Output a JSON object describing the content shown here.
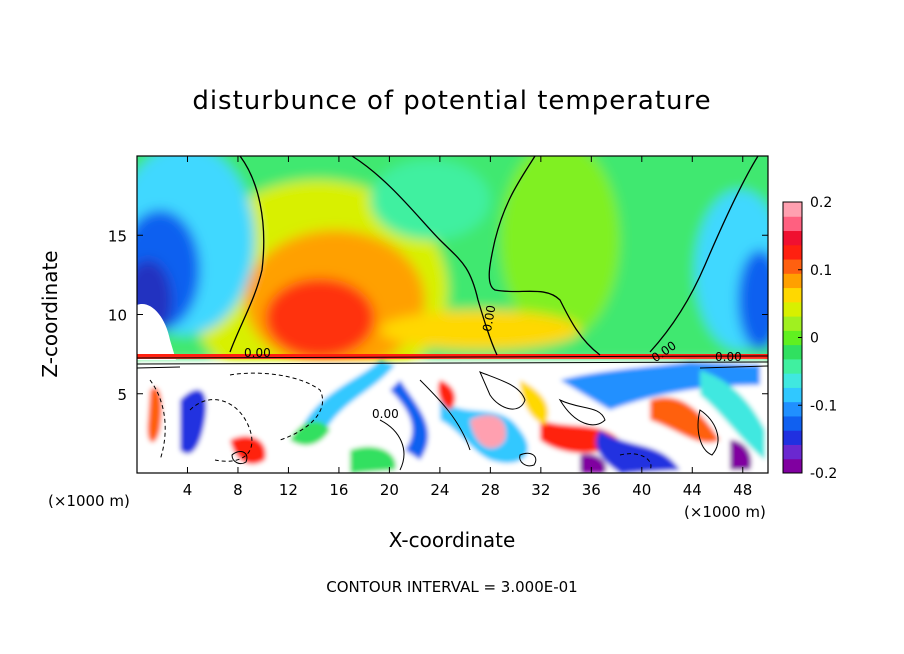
{
  "chart_data": {
    "type": "heatmap",
    "title": "disturbunce of potential temperature",
    "xlabel": "X-coordinate",
    "ylabel": "Z-coordinate",
    "x_unit_left": "(×1000 m)",
    "x_unit_right": "(×1000 m)",
    "xlim": [
      0,
      50
    ],
    "ylim": [
      0,
      20
    ],
    "x_ticks": [
      4,
      8,
      12,
      16,
      20,
      24,
      28,
      32,
      36,
      40,
      44,
      48
    ],
    "y_ticks": [
      5,
      10,
      15
    ],
    "colorbar": {
      "range": [
        -0.2,
        0.2
      ],
      "tick_labels": [
        "0.2",
        "0.1",
        "0",
        "-0.1",
        "-0.2"
      ],
      "tick_values": [
        0.2,
        0.1,
        0,
        -0.1,
        -0.2
      ],
      "colors": [
        "#8000a0",
        "#6a28d0",
        "#2030e0",
        "#1060f0",
        "#2090ff",
        "#30c8ff",
        "#40e8e0",
        "#40f0a0",
        "#30e060",
        "#60f020",
        "#a0f020",
        "#d8f000",
        "#ffd800",
        "#ffa000",
        "#ff6010",
        "#ff2010",
        "#f01030",
        "#ff6080",
        "#ffa0b0"
      ]
    },
    "contour_labels": [
      "0.00",
      "0.00",
      "0.00",
      "0.00",
      "0.00"
    ],
    "footer": "CONTOUR INTERVAL = 3.000E-01"
  }
}
